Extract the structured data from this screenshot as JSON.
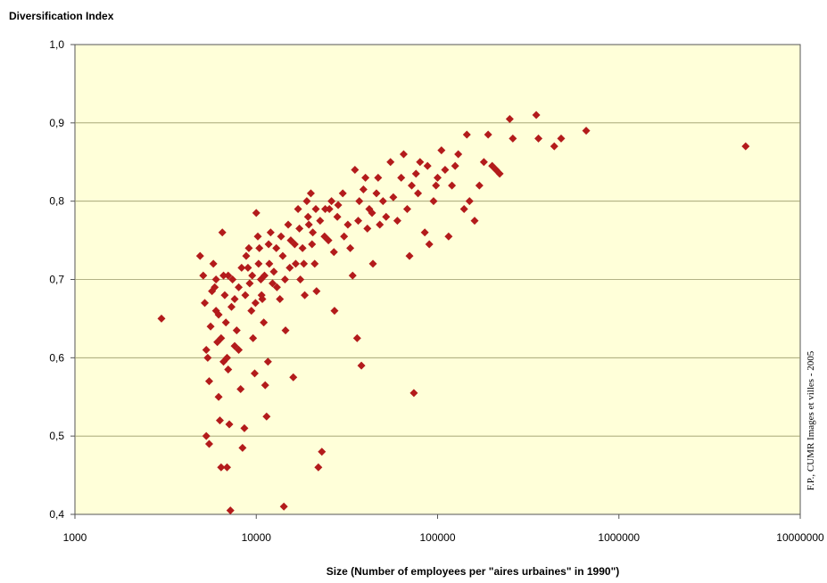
{
  "chart_data": {
    "type": "scatter",
    "ylabel": "Diversification Index",
    "xlabel": "Size (Number of employees per \"aires urbaines\" in 1990\")",
    "credit": "F.P., CUMR Images et villes - 2005",
    "x_scale": "log",
    "xlim": [
      1000,
      10000000
    ],
    "ylim": [
      0.4,
      1.0
    ],
    "x_ticks": [
      "1000",
      "10000",
      "100000",
      "1000000",
      "10000000"
    ],
    "y_ticks": [
      "0,4",
      "0,5",
      "0,6",
      "0,7",
      "0,8",
      "0,9",
      "1,0"
    ],
    "grid": "horizontal",
    "colors": {
      "plot_background": "#FFFFD9",
      "marker": "#B31B1B",
      "grid": "#9a9a6a"
    },
    "series": [
      {
        "points": [
          [
            3000,
            0.65
          ],
          [
            4900,
            0.73
          ],
          [
            5100,
            0.705
          ],
          [
            5200,
            0.67
          ],
          [
            5300,
            0.61
          ],
          [
            5400,
            0.6
          ],
          [
            5500,
            0.57
          ],
          [
            5300,
            0.5
          ],
          [
            5500,
            0.49
          ],
          [
            5600,
            0.64
          ],
          [
            5800,
            0.72
          ],
          [
            5900,
            0.69
          ],
          [
            6000,
            0.66
          ],
          [
            6100,
            0.62
          ],
          [
            6200,
            0.55
          ],
          [
            6300,
            0.52
          ],
          [
            6400,
            0.46
          ],
          [
            6500,
            0.76
          ],
          [
            6600,
            0.705
          ],
          [
            6700,
            0.68
          ],
          [
            6800,
            0.645
          ],
          [
            6900,
            0.6
          ],
          [
            7000,
            0.585
          ],
          [
            7100,
            0.515
          ],
          [
            6900,
            0.46
          ],
          [
            7200,
            0.405
          ],
          [
            7400,
            0.7
          ],
          [
            7600,
            0.675
          ],
          [
            7800,
            0.635
          ],
          [
            8000,
            0.61
          ],
          [
            8200,
            0.56
          ],
          [
            8400,
            0.485
          ],
          [
            8600,
            0.51
          ],
          [
            8800,
            0.73
          ],
          [
            9000,
            0.715
          ],
          [
            9200,
            0.695
          ],
          [
            9400,
            0.66
          ],
          [
            9600,
            0.625
          ],
          [
            9800,
            0.58
          ],
          [
            10000,
            0.785
          ],
          [
            10200,
            0.755
          ],
          [
            10400,
            0.74
          ],
          [
            10600,
            0.7
          ],
          [
            10800,
            0.675
          ],
          [
            11000,
            0.645
          ],
          [
            11200,
            0.565
          ],
          [
            11400,
            0.525
          ],
          [
            11600,
            0.595
          ],
          [
            11800,
            0.72
          ],
          [
            12000,
            0.76
          ],
          [
            12500,
            0.71
          ],
          [
            13000,
            0.69
          ],
          [
            13500,
            0.675
          ],
          [
            14000,
            0.73
          ],
          [
            14200,
            0.41
          ],
          [
            14500,
            0.635
          ],
          [
            15000,
            0.77
          ],
          [
            15500,
            0.75
          ],
          [
            16000,
            0.575
          ],
          [
            16500,
            0.72
          ],
          [
            17000,
            0.79
          ],
          [
            17500,
            0.7
          ],
          [
            18000,
            0.74
          ],
          [
            18500,
            0.68
          ],
          [
            19000,
            0.8
          ],
          [
            19500,
            0.77
          ],
          [
            20000,
            0.81
          ],
          [
            20500,
            0.76
          ],
          [
            21000,
            0.72
          ],
          [
            21500,
            0.685
          ],
          [
            22000,
            0.46
          ],
          [
            23000,
            0.48
          ],
          [
            24000,
            0.79
          ],
          [
            25000,
            0.75
          ],
          [
            26000,
            0.8
          ],
          [
            27000,
            0.66
          ],
          [
            28000,
            0.78
          ],
          [
            30000,
            0.81
          ],
          [
            32000,
            0.77
          ],
          [
            34000,
            0.705
          ],
          [
            35000,
            0.84
          ],
          [
            36000,
            0.625
          ],
          [
            37000,
            0.8
          ],
          [
            38000,
            0.59
          ],
          [
            40000,
            0.83
          ],
          [
            42000,
            0.79
          ],
          [
            44000,
            0.72
          ],
          [
            46000,
            0.81
          ],
          [
            48000,
            0.77
          ],
          [
            50000,
            0.8
          ],
          [
            55000,
            0.85
          ],
          [
            60000,
            0.775
          ],
          [
            65000,
            0.86
          ],
          [
            70000,
            0.73
          ],
          [
            72000,
            0.82
          ],
          [
            74000,
            0.555
          ],
          [
            76000,
            0.835
          ],
          [
            80000,
            0.85
          ],
          [
            85000,
            0.76
          ],
          [
            90000,
            0.745
          ],
          [
            95000,
            0.8
          ],
          [
            100000,
            0.83
          ],
          [
            105000,
            0.865
          ],
          [
            110000,
            0.84
          ],
          [
            115000,
            0.755
          ],
          [
            120000,
            0.82
          ],
          [
            130000,
            0.86
          ],
          [
            140000,
            0.79
          ],
          [
            145000,
            0.885
          ],
          [
            150000,
            0.8
          ],
          [
            160000,
            0.775
          ],
          [
            180000,
            0.85
          ],
          [
            190000,
            0.885
          ],
          [
            200000,
            0.845
          ],
          [
            210000,
            0.84
          ],
          [
            220000,
            0.835
          ],
          [
            250000,
            0.905
          ],
          [
            260000,
            0.88
          ],
          [
            350000,
            0.91
          ],
          [
            360000,
            0.88
          ],
          [
            440000,
            0.87
          ],
          [
            480000,
            0.88
          ],
          [
            660000,
            0.89
          ],
          [
            5000000,
            0.87
          ],
          [
            5700,
            0.685
          ],
          [
            6000,
            0.7
          ],
          [
            6200,
            0.655
          ],
          [
            6400,
            0.625
          ],
          [
            6600,
            0.595
          ],
          [
            7000,
            0.705
          ],
          [
            7300,
            0.665
          ],
          [
            7600,
            0.615
          ],
          [
            8000,
            0.69
          ],
          [
            8300,
            0.715
          ],
          [
            8700,
            0.68
          ],
          [
            9100,
            0.74
          ],
          [
            9500,
            0.705
          ],
          [
            9900,
            0.67
          ],
          [
            10300,
            0.72
          ],
          [
            10700,
            0.68
          ],
          [
            11100,
            0.705
          ],
          [
            11700,
            0.745
          ],
          [
            12300,
            0.695
          ],
          [
            12900,
            0.74
          ],
          [
            13700,
            0.755
          ],
          [
            14400,
            0.7
          ],
          [
            15300,
            0.715
          ],
          [
            16300,
            0.745
          ],
          [
            17300,
            0.765
          ],
          [
            18300,
            0.72
          ],
          [
            19300,
            0.78
          ],
          [
            20300,
            0.745
          ],
          [
            21300,
            0.79
          ],
          [
            22500,
            0.775
          ],
          [
            23800,
            0.755
          ],
          [
            25300,
            0.79
          ],
          [
            26800,
            0.735
          ],
          [
            28300,
            0.795
          ],
          [
            30500,
            0.755
          ],
          [
            33000,
            0.74
          ],
          [
            36500,
            0.775
          ],
          [
            39000,
            0.815
          ],
          [
            41000,
            0.765
          ],
          [
            43500,
            0.785
          ],
          [
            47000,
            0.83
          ],
          [
            52000,
            0.78
          ],
          [
            57000,
            0.805
          ],
          [
            63000,
            0.83
          ],
          [
            68000,
            0.79
          ],
          [
            78000,
            0.81
          ],
          [
            88000,
            0.845
          ],
          [
            98000,
            0.82
          ],
          [
            125000,
            0.845
          ],
          [
            170000,
            0.82
          ]
        ]
      }
    ]
  }
}
